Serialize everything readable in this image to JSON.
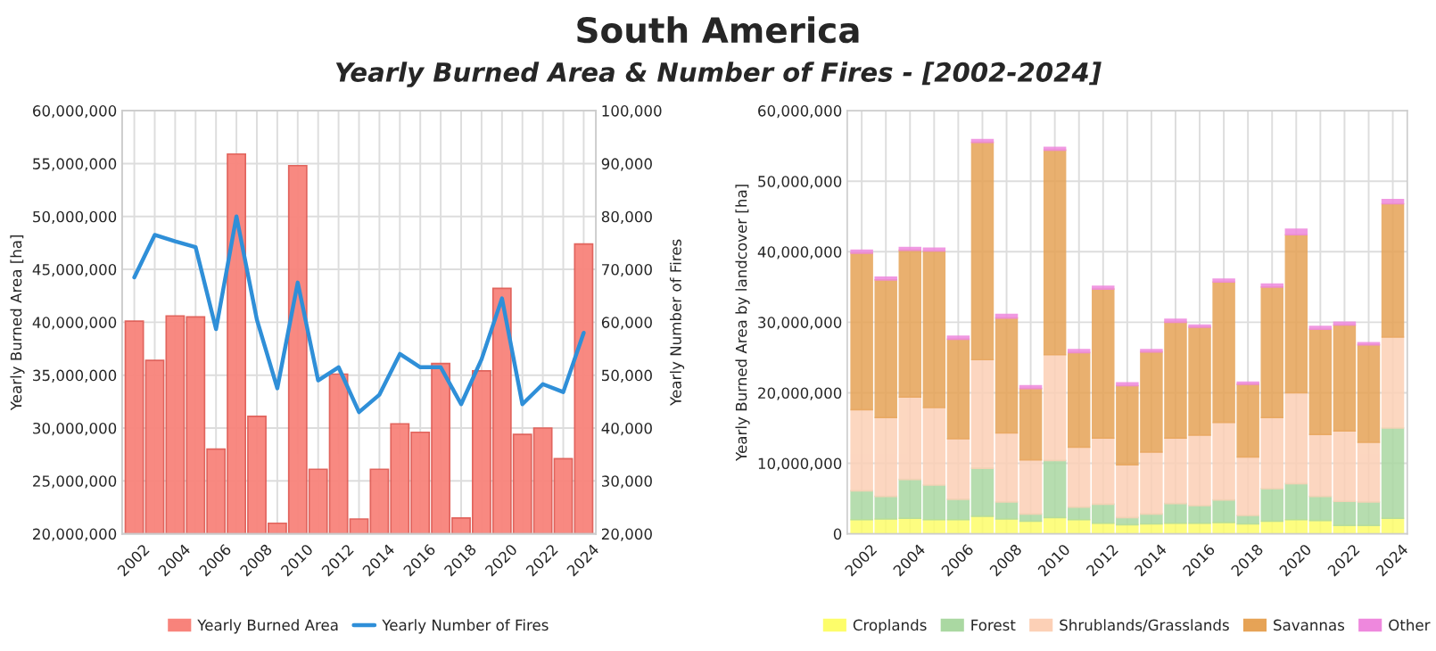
{
  "chart_data": [
    {
      "type": "bar",
      "title": "South America",
      "subtitle": "Yearly Burned Area & Number of Fires - [2002-2024]",
      "ylabel": "Yearly Burned Area [ha]",
      "y2label": "Yearly Number of Fires",
      "categories": [
        "2002",
        null,
        "2004",
        null,
        "2006",
        null,
        "2008",
        null,
        "2010",
        null,
        "2012",
        null,
        "2014",
        null,
        "2016",
        null,
        "2018",
        null,
        "2020",
        null,
        "2022",
        null,
        "2024"
      ],
      "series": [
        {
          "name": "Yearly Burned Area",
          "type": "bar",
          "color": "#f8837b",
          "values": [
            40100000,
            36400000,
            40600000,
            40500000,
            28000000,
            55900000,
            31100000,
            21000000,
            54800000,
            26100000,
            35100000,
            21400000,
            26100000,
            30400000,
            29600000,
            36100000,
            21500000,
            35400000,
            43200000,
            29400000,
            30000000,
            27100000,
            47400000
          ]
        },
        {
          "name": "Yearly Number of Fires",
          "type": "line",
          "axis": "y2",
          "color": "#2f8fd8",
          "values": [
            68500,
            76500,
            75300,
            74200,
            58700,
            80000,
            60500,
            47500,
            67500,
            49000,
            51500,
            43000,
            46300,
            54000,
            51500,
            51500,
            44500,
            53000,
            64500,
            44500,
            48300,
            46800,
            58000
          ]
        }
      ],
      "ylim": [
        20000000,
        60000000
      ],
      "yticks": [
        {
          "value": 20000000,
          "label": "20,000,000"
        },
        {
          "value": 25000000,
          "label": "25,000,000"
        },
        {
          "value": 30000000,
          "label": "30,000,000"
        },
        {
          "value": 35000000,
          "label": "35,000,000"
        },
        {
          "value": 40000000,
          "label": "40,000,000"
        },
        {
          "value": 45000000,
          "label": "45,000,000"
        },
        {
          "value": 50000000,
          "label": "50,000,000"
        },
        {
          "value": 55000000,
          "label": "55,000,000"
        },
        {
          "value": 60000000,
          "label": "60,000,000"
        }
      ],
      "y2lim": [
        20000,
        100000
      ],
      "y2ticks": [
        {
          "value": 20000,
          "label": "20,000"
        },
        {
          "value": 30000,
          "label": "30,000"
        },
        {
          "value": 40000,
          "label": "40,000"
        },
        {
          "value": 50000,
          "label": "50,000"
        },
        {
          "value": 60000,
          "label": "60,000"
        },
        {
          "value": 70000,
          "label": "70,000"
        },
        {
          "value": 80000,
          "label": "80,000"
        },
        {
          "value": 90000,
          "label": "90,000"
        },
        {
          "value": 100000,
          "label": "100,000"
        }
      ],
      "grid": true,
      "legend": "bottom",
      "marker": "none"
    },
    {
      "type": "bar",
      "stacked": true,
      "ylabel": "Yearly Burned Area by landcover [ha]",
      "categories": [
        "2002",
        null,
        "2004",
        null,
        "2006",
        null,
        "2008",
        null,
        "2010",
        null,
        "2012",
        null,
        "2014",
        null,
        "2016",
        null,
        "2018",
        null,
        "2020",
        null,
        "2022",
        null,
        "2024"
      ],
      "series": [
        {
          "name": "Croplands",
          "color": "#fdfd6a",
          "values": [
            2000000,
            2100000,
            2200000,
            2000000,
            2000000,
            2500000,
            2100000,
            1800000,
            2300000,
            2000000,
            1500000,
            1300000,
            1400000,
            1500000,
            1500000,
            1600000,
            1400000,
            1800000,
            2000000,
            1900000,
            1200000,
            1200000,
            2200000
          ]
        },
        {
          "name": "Forest",
          "color": "#aad8a2",
          "values": [
            4100000,
            3200000,
            5500000,
            4900000,
            2900000,
            6800000,
            2400000,
            1000000,
            8100000,
            1800000,
            2700000,
            1000000,
            1400000,
            2800000,
            2500000,
            3200000,
            1200000,
            4600000,
            5100000,
            3400000,
            3400000,
            3300000,
            12800000
          ]
        },
        {
          "name": "Shrublands/Grasslands",
          "color": "#fcd0b6",
          "values": [
            11500000,
            11200000,
            11700000,
            11000000,
            8600000,
            15400000,
            9800000,
            7700000,
            15000000,
            8500000,
            9400000,
            7500000,
            8800000,
            9300000,
            10000000,
            11000000,
            8300000,
            10100000,
            12900000,
            8800000,
            10000000,
            8500000,
            12900000
          ]
        },
        {
          "name": "Savannas",
          "color": "#e6a356",
          "values": [
            22200000,
            19500000,
            20800000,
            22200000,
            14100000,
            30800000,
            16300000,
            10100000,
            29000000,
            13400000,
            21100000,
            11200000,
            14200000,
            16400000,
            15300000,
            19900000,
            10300000,
            18500000,
            22400000,
            14900000,
            15000000,
            13800000,
            18900000
          ]
        },
        {
          "name": "Other",
          "color": "#ee88dd",
          "values": [
            400000,
            400000,
            400000,
            400000,
            400000,
            400000,
            500000,
            400000,
            400000,
            400000,
            400000,
            400000,
            300000,
            400000,
            300000,
            400000,
            300000,
            400000,
            800000,
            400000,
            400000,
            300000,
            600000
          ]
        }
      ],
      "ylim": [
        0,
        60000000
      ],
      "yticks": [
        0,
        {
          "value": 10000000,
          "label": "10,000,000"
        },
        {
          "value": 20000000,
          "label": "20,000,000"
        },
        {
          "value": 30000000,
          "label": "30,000,000"
        },
        {
          "value": 40000000,
          "label": "40,000,000"
        },
        {
          "value": 50000000,
          "label": "50,000,000"
        },
        {
          "value": 60000000,
          "label": "60,000,000"
        }
      ],
      "grid": true,
      "legend": "bottom"
    }
  ]
}
